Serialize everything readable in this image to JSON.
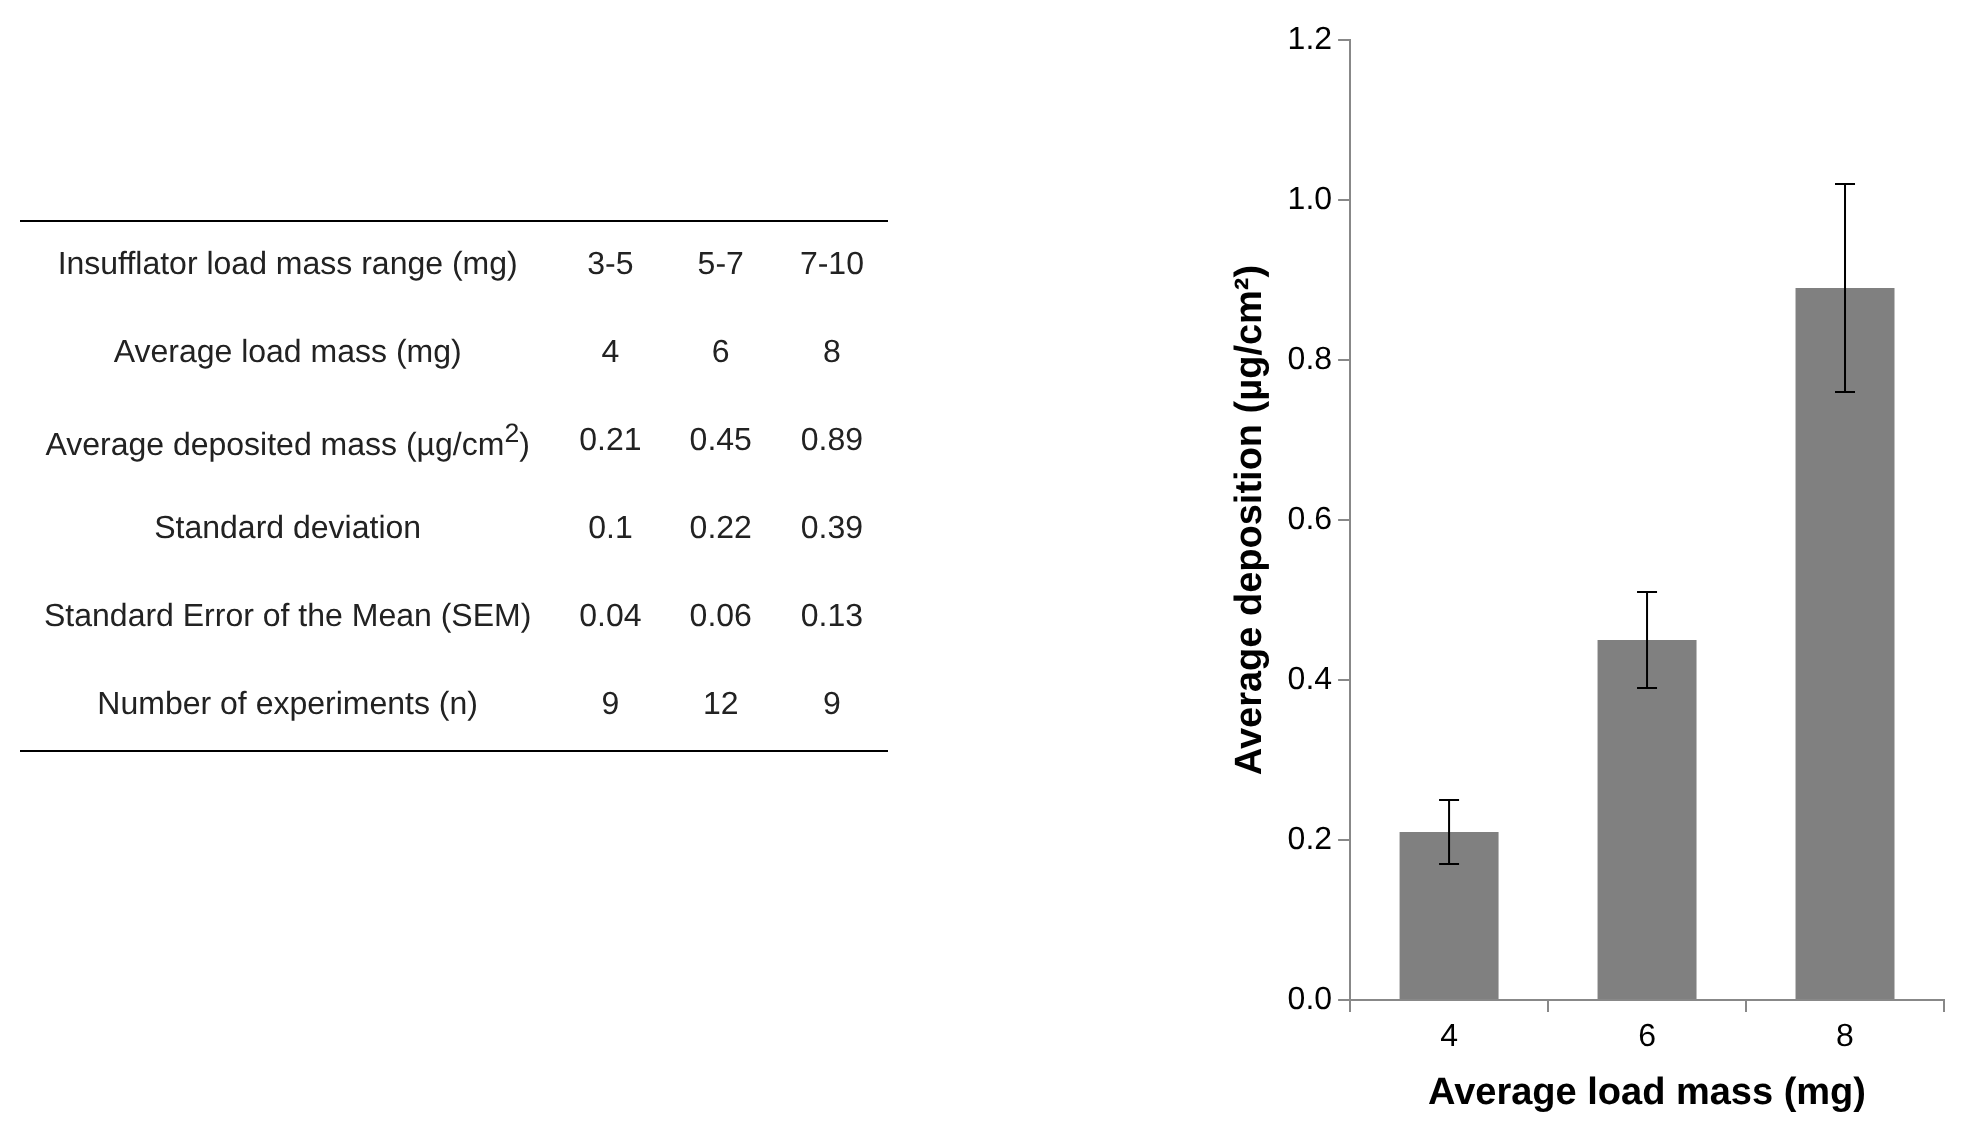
{
  "chart_data": [
    {
      "type": "other",
      "y_categories": [
        "Insufflator load mass range (mg)",
        "Average load mass (mg)",
        "Average deposited mass (µg/cm$^{2}$)",
        "Standard deviation",
        "Standard Error of the Mean (SEM)",
        "Number of experiments (n)"
      ],
      "cell_labels": [
        [
          "3-5",
          "5-7",
          "7-10"
        ],
        [
          "4",
          "6",
          "8"
        ],
        [
          "0.21",
          "0.45",
          "0.89"
        ],
        [
          "0.1",
          "0.22",
          "0.39"
        ],
        [
          "0.04",
          "0.06",
          "0.13"
        ],
        [
          "9",
          "12",
          "9"
        ]
      ]
    },
    {
      "type": "bar",
      "categories": [
        "4",
        "6",
        "8"
      ],
      "values": [
        0.21,
        0.45,
        0.89
      ],
      "errors": [
        0.04,
        0.06,
        0.13
      ],
      "color": "#808080",
      "xlabel": "Average load mass (mg)",
      "ylabel": "Average deposition (µg/cm²)",
      "ylim": [
        0,
        1.2
      ],
      "yticks": [
        {
          "value": 0,
          "label": "0.0"
        },
        {
          "value": 0.2,
          "label": "0.2"
        },
        {
          "value": 0.4,
          "label": "0.4"
        },
        {
          "value": 0.6,
          "label": "0.6"
        },
        {
          "value": 0.8,
          "label": "0.8"
        },
        {
          "value": 1,
          "label": "1.0"
        },
        {
          "value": 1.2,
          "label": "1.2"
        }
      ],
      "grid": false,
      "legend": false
    }
  ]
}
